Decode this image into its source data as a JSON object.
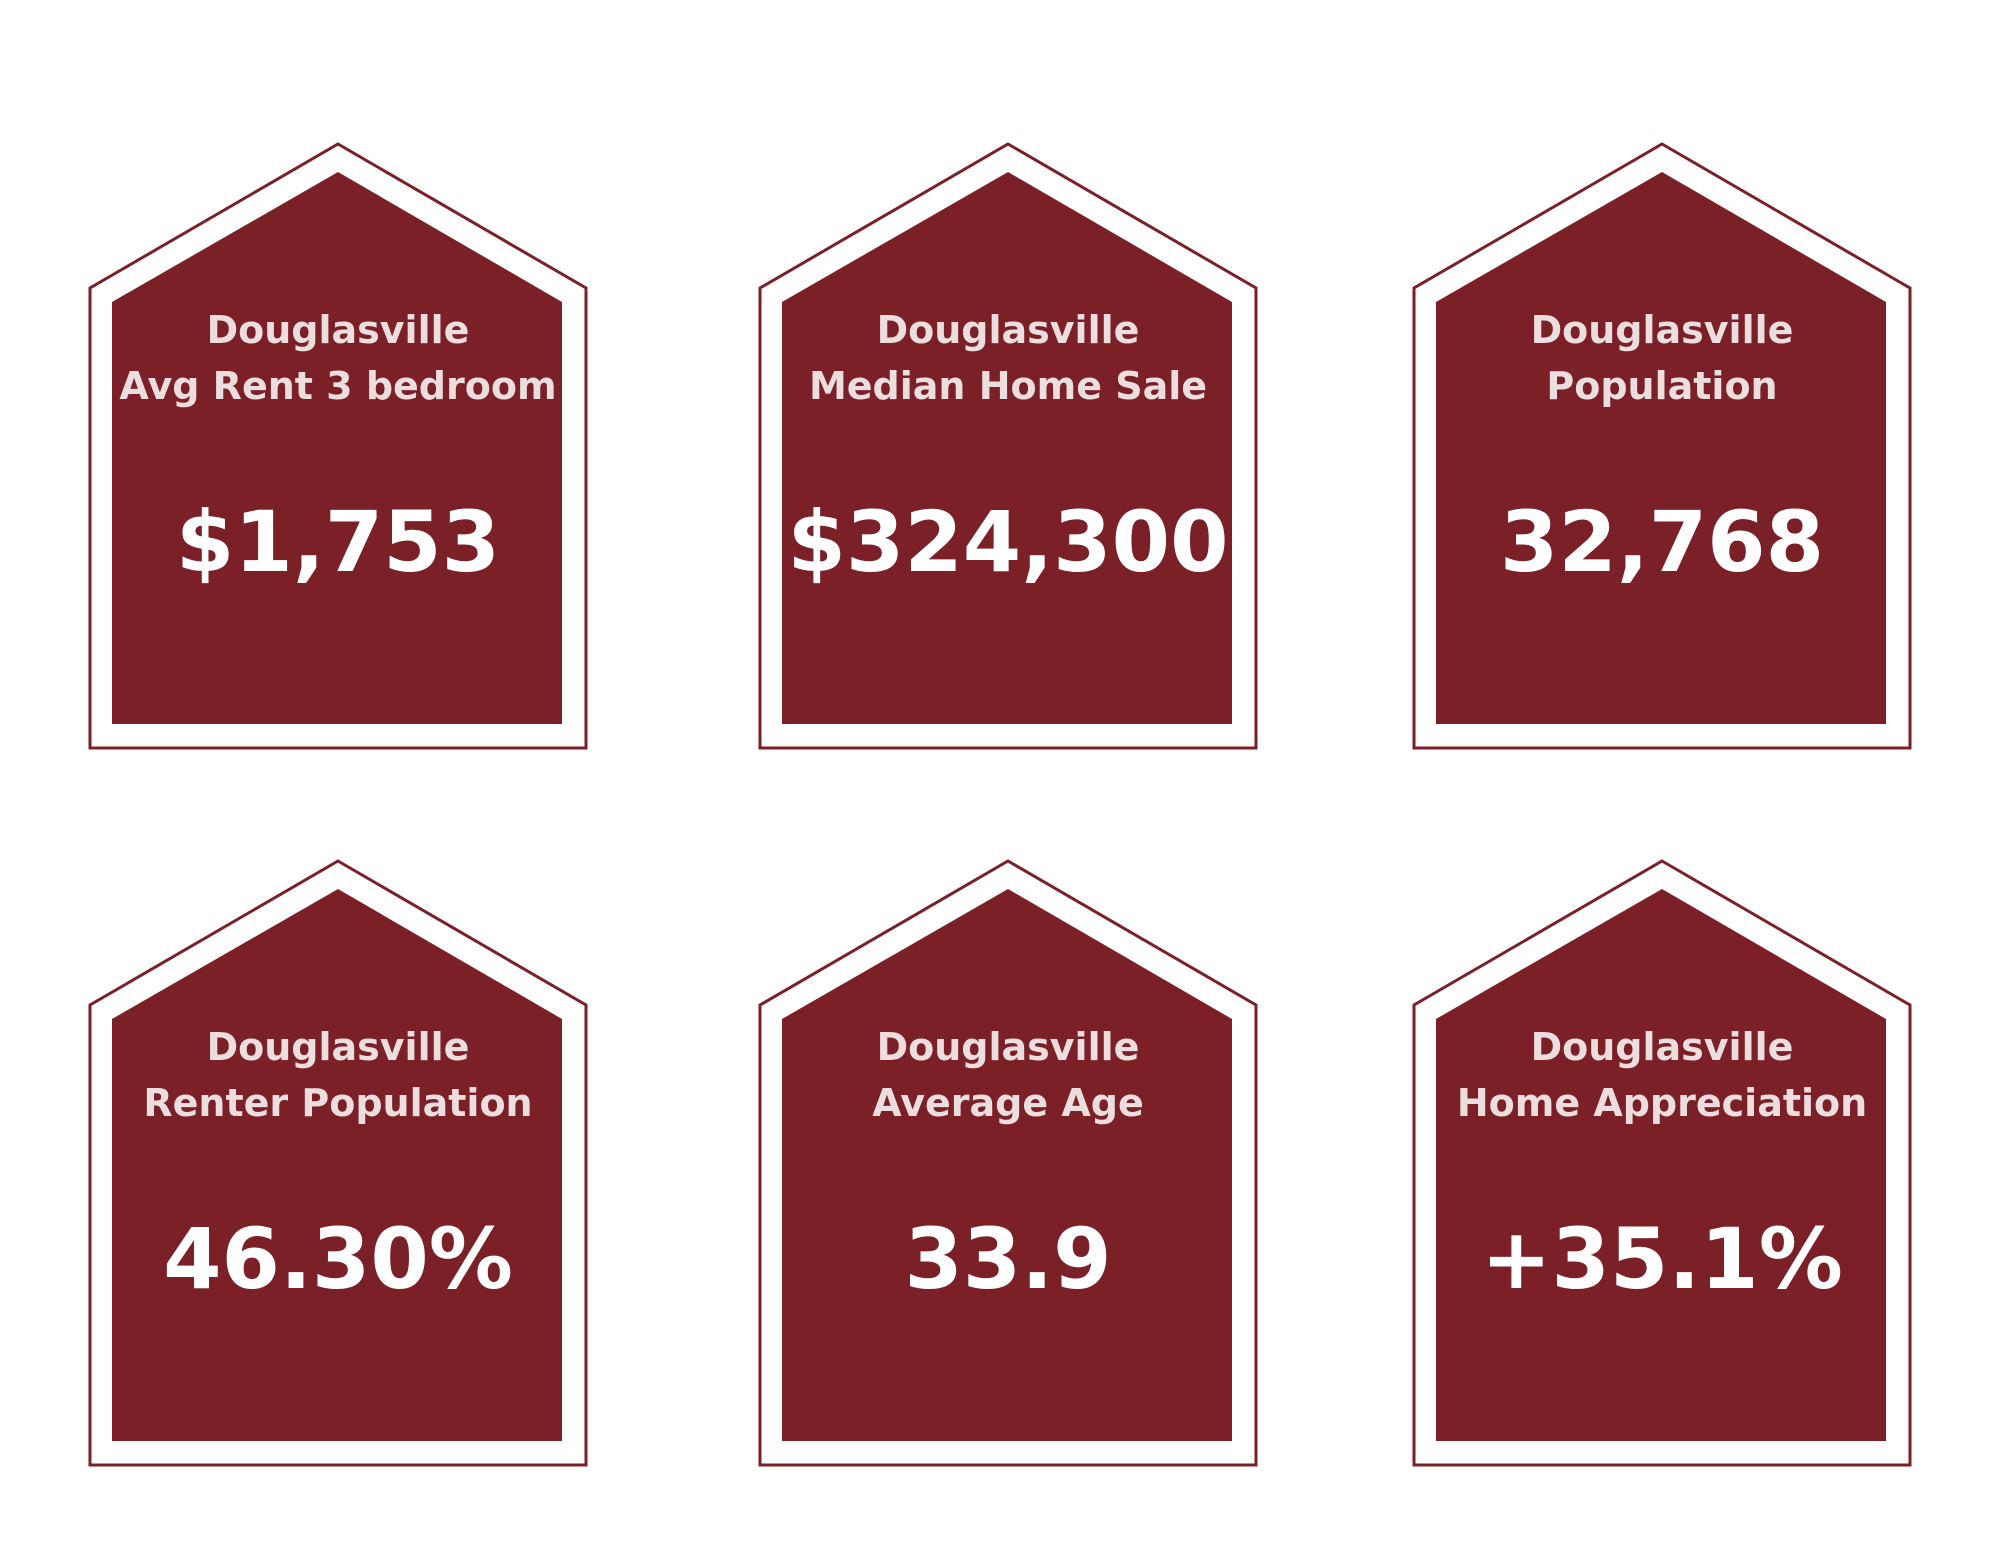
{
  "colors": {
    "house_fill": "#7a2026",
    "house_outline": "#7a2026",
    "label_text": "#ecdede",
    "value_text": "#ffffff",
    "background": "#ffffff"
  },
  "cards": [
    {
      "city": "Douglasville",
      "metric": "Avg Rent 3 bedroom",
      "value": "$1,753"
    },
    {
      "city": "Douglasville",
      "metric": "Median Home Sale",
      "value": "$324,300"
    },
    {
      "city": "Douglasville",
      "metric": "Population",
      "value": "32,768"
    },
    {
      "city": "Douglasville",
      "metric": "Renter Population",
      "value": "46.30%"
    },
    {
      "city": "Douglasville",
      "metric": "Average Age",
      "value": "33.9"
    },
    {
      "city": "Douglasville",
      "metric": "Home Appreciation",
      "value": "+35.1%"
    }
  ]
}
